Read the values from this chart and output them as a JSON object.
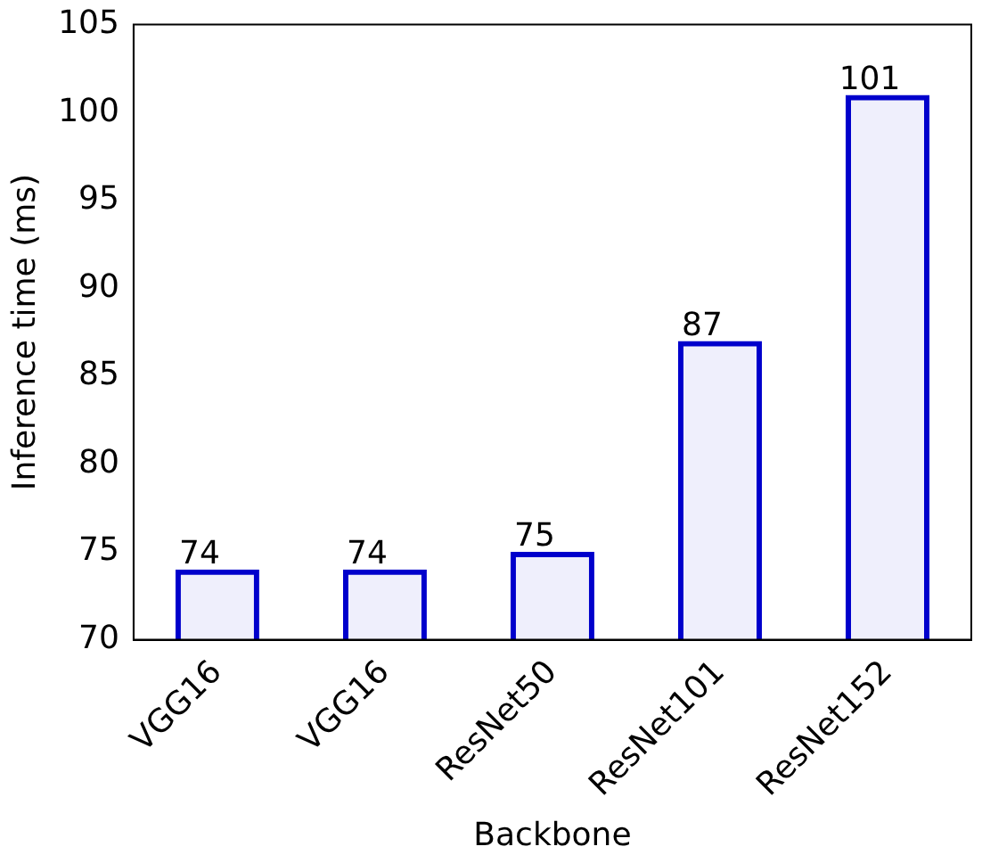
{
  "chart_data": {
    "type": "bar",
    "xlabel": "Backbone",
    "ylabel": "Inference time (ms)",
    "categories": [
      "VGG16",
      "VGG16",
      "ResNet50",
      "ResNet101",
      "ResNet152"
    ],
    "values": [
      74,
      74,
      75,
      87,
      101
    ],
    "color": "#0000cc",
    "ylim": [
      70,
      105
    ],
    "yticks": [
      70,
      75,
      80,
      85,
      90,
      95,
      100,
      105
    ],
    "grid": false,
    "legend": false,
    "data_labels": true
  }
}
